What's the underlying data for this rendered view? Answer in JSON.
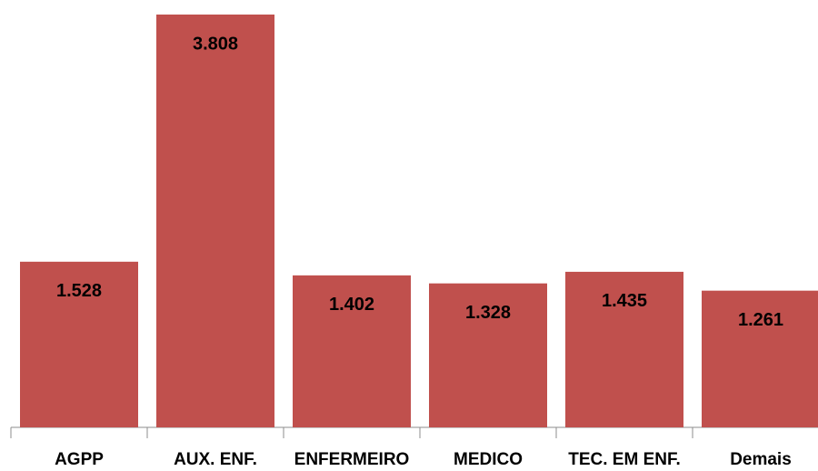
{
  "chart_data": {
    "type": "bar",
    "categories": [
      "AGPP",
      "AUX. ENF.",
      "ENFERMEIRO",
      "MEDICO",
      "TEC. EM ENF.",
      "Demais"
    ],
    "values": [
      1528,
      3808,
      1402,
      1328,
      1435,
      1261
    ],
    "value_labels": [
      "1.528",
      "3.808",
      "1.402",
      "1.328",
      "1.435",
      "1.261"
    ],
    "color": "#c0504d"
  }
}
